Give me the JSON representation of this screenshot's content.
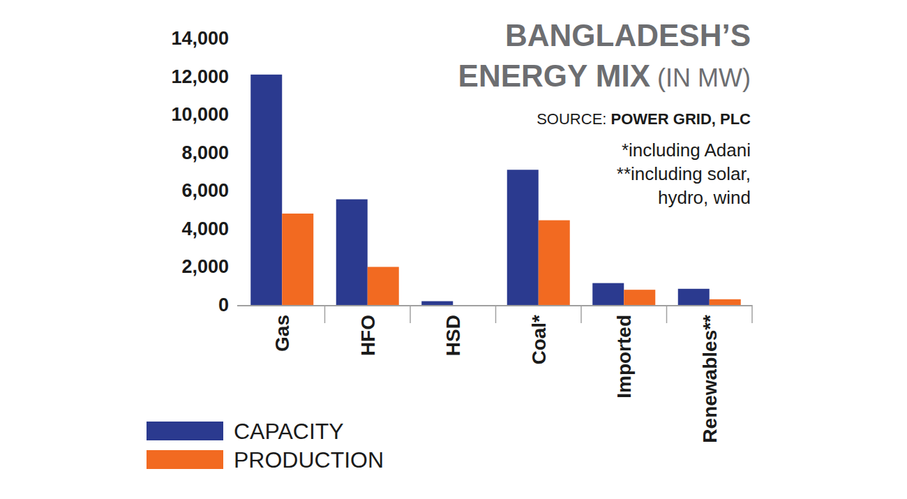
{
  "chart_data": {
    "type": "bar",
    "title": "BANGLADESH’S ENERGY MIX",
    "subtitle": "(IN MW)",
    "annotations": [
      "SOURCE: POWER GRID, PLC",
      "*including Adani",
      "**including solar, hydro, wind"
    ],
    "categories": [
      "Gas",
      "HFO",
      "HSD",
      "Coal*",
      "Imported",
      "Renewables**"
    ],
    "series": [
      {
        "name": "CAPACITY",
        "color": "#2b3a8f",
        "values": [
          12100,
          5550,
          200,
          7100,
          1150,
          850
        ]
      },
      {
        "name": "PRODUCTION",
        "color": "#f26a21",
        "values": [
          4800,
          2000,
          0,
          4450,
          800,
          300
        ]
      }
    ],
    "ylim": [
      0,
      14000
    ],
    "yticks": [
      0,
      {
        "value": 2000,
        "label": "2,000"
      },
      {
        "value": 4000,
        "label": "4,000"
      },
      {
        "value": 6000,
        "label": "6,000"
      },
      {
        "value": 8000,
        "label": "8,000"
      },
      {
        "value": 10000,
        "label": "10,000"
      },
      {
        "value": 12000,
        "label": "12,000"
      },
      {
        "value": 14000,
        "label": "14,000"
      }
    ],
    "grid": false,
    "legend": "lower left"
  }
}
